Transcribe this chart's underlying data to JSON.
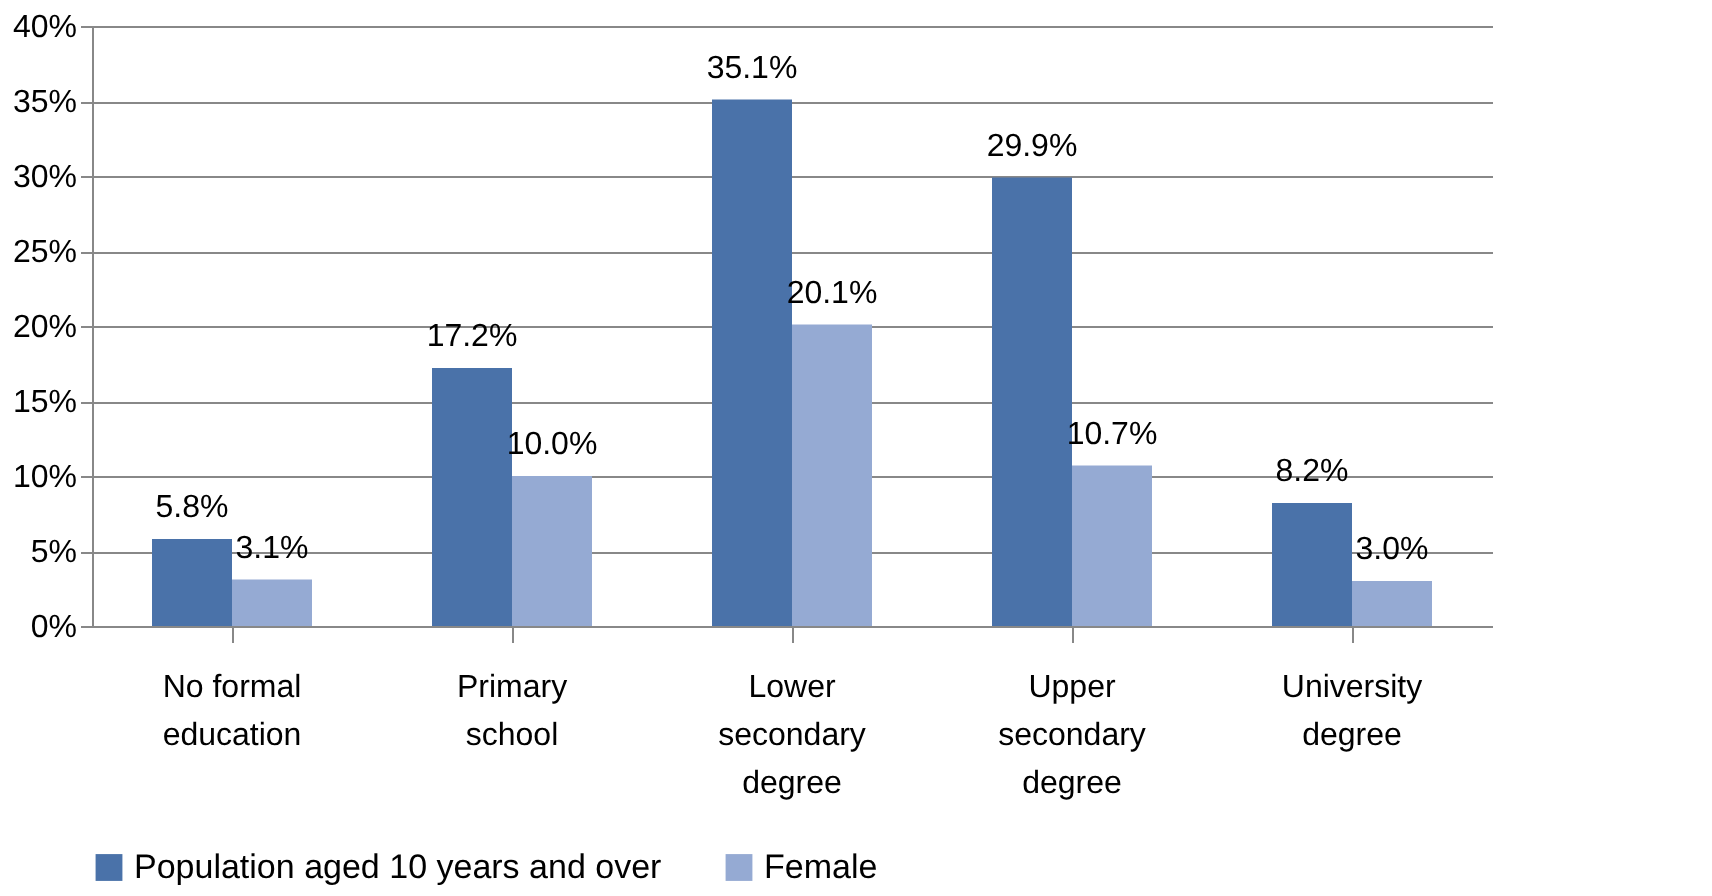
{
  "chart_data": {
    "type": "bar",
    "categories": [
      "No formal education",
      "Primary school",
      "Lower secondary degree",
      "Upper secondary degree",
      "University degree"
    ],
    "series": [
      {
        "name": "Population aged 10 years and over",
        "color": "#4a72a9",
        "values": [
          5.8,
          17.2,
          35.1,
          29.9,
          8.2
        ],
        "value_labels": [
          "5.8%",
          "17.2%",
          "35.1%",
          "29.9%",
          "8.2%"
        ]
      },
      {
        "name": "Female",
        "color": "#95aad3",
        "values": [
          3.1,
          10.0,
          20.1,
          10.7,
          3.0
        ],
        "value_labels": [
          "3.1%",
          "10.0%",
          "20.1%",
          "10.7%",
          "3.0%"
        ]
      }
    ],
    "ylim": [
      0,
      40
    ],
    "yticks": [
      {
        "value": 0,
        "label": "0%"
      },
      {
        "value": 5,
        "label": "5%"
      },
      {
        "value": 10,
        "label": "10%"
      },
      {
        "value": 15,
        "label": "15%"
      },
      {
        "value": 20,
        "label": "20%"
      },
      {
        "value": 25,
        "label": "25%"
      },
      {
        "value": 30,
        "label": "30%"
      },
      {
        "value": 35,
        "label": "35%"
      },
      {
        "value": 40,
        "label": "40%"
      }
    ],
    "grid": "y",
    "legend": "bottom"
  }
}
